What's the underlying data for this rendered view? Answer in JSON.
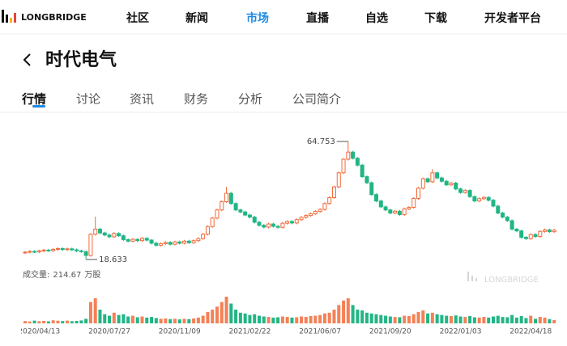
{
  "header": {
    "brand": "LONGBRIDGE",
    "nav": [
      "社区",
      "新闻",
      "市场",
      "直播",
      "自选",
      "下载",
      "开发者平台"
    ],
    "active_nav": 2
  },
  "page": {
    "title": "时代电气",
    "tabs": [
      "行情",
      "讨论",
      "资讯",
      "财务",
      "分析",
      "公司简介"
    ],
    "active_tab": 0
  },
  "chart_data": {
    "type": "candlestick",
    "categories": [
      null,
      null,
      null,
      "2020/04/13",
      null,
      null,
      null,
      null,
      null,
      null,
      null,
      null,
      null,
      null,
      null,
      null,
      null,
      null,
      "2020/07/27",
      null,
      null,
      null,
      null,
      null,
      null,
      null,
      null,
      null,
      null,
      null,
      null,
      null,
      null,
      "2020/11/09",
      null,
      null,
      null,
      null,
      null,
      null,
      null,
      null,
      null,
      null,
      null,
      null,
      null,
      null,
      "2021/02/22",
      null,
      null,
      null,
      null,
      null,
      null,
      null,
      null,
      null,
      null,
      null,
      null,
      null,
      null,
      "2021/06/07",
      null,
      null,
      null,
      null,
      null,
      null,
      null,
      null,
      null,
      null,
      null,
      null,
      null,
      null,
      "2021/09/20",
      null,
      null,
      null,
      null,
      null,
      null,
      null,
      null,
      null,
      null,
      null,
      null,
      null,
      null,
      "2022/01/03",
      null,
      null,
      null,
      null,
      null,
      null,
      null,
      null,
      null,
      null,
      null,
      null,
      null,
      null,
      "2022/04/18",
      null,
      null,
      null,
      null,
      null
    ],
    "open": [
      21.3,
      21.5,
      21.8,
      21.6,
      22.0,
      22.3,
      22.1,
      22.6,
      22.9,
      22.5,
      22.8,
      22.4,
      22.0,
      21.7,
      20.2,
      28.5,
      30.5,
      29.0,
      28.2,
      27.5,
      28.8,
      27.9,
      26.4,
      25.8,
      26.5,
      26.0,
      26.9,
      26.2,
      25.0,
      24.2,
      24.8,
      25.3,
      24.6,
      25.5,
      25.0,
      25.8,
      25.2,
      26.0,
      26.8,
      28.5,
      31.5,
      34.8,
      38.0,
      41.2,
      44.5,
      40.5,
      38.0,
      37.2,
      36.0,
      35.2,
      33.2,
      32.0,
      31.3,
      32.5,
      31.6,
      31.2,
      32.8,
      33.5,
      32.9,
      34.2,
      35.1,
      35.8,
      36.5,
      37.4,
      38.2,
      40.5,
      42.8,
      47.0,
      52.5,
      57.8,
      60.6,
      58.2,
      55.5,
      51.0,
      48.6,
      44.0,
      41.5,
      39.2,
      38.0,
      36.8,
      37.5,
      36.2,
      38.4,
      39.0,
      42.5,
      46.5,
      50.2,
      49.0,
      52.5,
      50.5,
      49.2,
      47.8,
      48.5,
      46.2,
      44.8,
      45.6,
      43.2,
      41.5,
      42.4,
      42.9,
      41.8,
      39.5,
      36.8,
      35.2,
      33.8,
      30.5,
      29.8,
      27.3,
      26.8,
      28.4,
      27.6,
      29.6,
      30.2,
      29.5
    ],
    "high": [
      22.0,
      22.3,
      22.3,
      22.5,
      22.8,
      22.8,
      23.1,
      23.4,
      23.4,
      23.3,
      23.3,
      22.9,
      22.5,
      22.2,
      29.0,
      35.4,
      31.0,
      29.5,
      28.7,
      29.3,
      29.3,
      28.4,
      26.9,
      27.0,
      27.0,
      27.4,
      27.4,
      26.7,
      25.5,
      25.3,
      25.8,
      25.8,
      26.0,
      26.0,
      26.3,
      26.3,
      26.5,
      27.3,
      29.0,
      32.0,
      35.3,
      38.5,
      41.7,
      47.0,
      45.0,
      41.0,
      38.5,
      37.7,
      36.5,
      35.7,
      33.7,
      32.5,
      33.0,
      33.0,
      32.1,
      33.3,
      34.0,
      34.0,
      34.7,
      35.6,
      36.3,
      37.0,
      37.9,
      38.7,
      41.0,
      43.3,
      47.5,
      53.0,
      58.3,
      64.753,
      61.1,
      58.7,
      56.0,
      51.5,
      49.1,
      44.5,
      42.0,
      39.7,
      38.5,
      38.0,
      38.0,
      38.9,
      39.5,
      43.0,
      47.0,
      50.7,
      50.7,
      54.0,
      53.0,
      51.0,
      49.7,
      49.0,
      49.0,
      46.7,
      46.1,
      46.1,
      43.7,
      42.9,
      43.4,
      43.4,
      42.3,
      40.0,
      37.3,
      35.7,
      34.3,
      31.0,
      30.3,
      27.8,
      28.9,
      28.9,
      30.1,
      30.7,
      30.7,
      30.6
    ],
    "low": [
      20.8,
      21.0,
      21.1,
      21.1,
      21.5,
      21.6,
      21.6,
      22.1,
      22.0,
      22.0,
      21.9,
      21.5,
      21.2,
      18.633,
      19.7,
      28.0,
      28.5,
      27.7,
      27.0,
      27.0,
      27.4,
      25.9,
      25.3,
      25.3,
      25.5,
      25.5,
      25.7,
      24.5,
      23.7,
      23.7,
      24.3,
      24.1,
      24.1,
      24.5,
      24.5,
      24.7,
      24.7,
      25.5,
      26.3,
      28.0,
      31.0,
      34.3,
      37.5,
      40.7,
      40.0,
      37.5,
      36.7,
      35.5,
      34.7,
      32.7,
      31.5,
      30.8,
      30.8,
      31.1,
      30.7,
      30.7,
      32.3,
      32.4,
      32.4,
      33.7,
      34.6,
      35.3,
      36.0,
      36.9,
      37.7,
      40.0,
      42.3,
      46.5,
      52.0,
      57.3,
      57.7,
      55.0,
      50.5,
      48.1,
      43.5,
      41.0,
      38.7,
      37.5,
      36.3,
      36.3,
      35.7,
      35.7,
      37.9,
      38.5,
      42.0,
      46.0,
      48.5,
      48.5,
      50.0,
      48.7,
      47.3,
      47.3,
      45.7,
      44.3,
      44.3,
      42.7,
      41.0,
      41.0,
      41.9,
      41.3,
      39.0,
      36.3,
      34.7,
      33.3,
      30.0,
      29.3,
      26.8,
      26.3,
      26.3,
      27.1,
      27.1,
      29.1,
      29.0,
      29.0
    ],
    "close": [
      21.5,
      21.8,
      21.6,
      22.0,
      22.3,
      22.1,
      22.6,
      22.9,
      22.5,
      22.8,
      22.4,
      22.0,
      21.7,
      20.2,
      28.5,
      30.5,
      29.0,
      28.2,
      27.5,
      28.8,
      27.9,
      26.4,
      25.8,
      26.5,
      26.0,
      26.9,
      26.2,
      25.0,
      24.2,
      24.8,
      25.3,
      24.6,
      25.5,
      25.0,
      25.8,
      25.2,
      26.0,
      26.8,
      28.5,
      31.5,
      34.8,
      38.0,
      41.2,
      44.5,
      40.5,
      38.0,
      37.2,
      36.0,
      35.2,
      33.2,
      32.0,
      31.3,
      32.5,
      31.6,
      31.2,
      32.8,
      33.5,
      32.9,
      34.2,
      35.1,
      35.8,
      36.5,
      37.4,
      38.2,
      40.5,
      42.8,
      47.0,
      52.5,
      57.8,
      60.6,
      58.2,
      55.5,
      51.0,
      48.6,
      44.0,
      41.5,
      39.2,
      38.0,
      36.8,
      37.5,
      36.2,
      38.4,
      39.0,
      42.5,
      46.5,
      50.2,
      49.0,
      52.5,
      50.5,
      49.2,
      47.8,
      48.5,
      46.2,
      44.8,
      45.6,
      43.2,
      41.5,
      42.4,
      42.9,
      41.8,
      39.5,
      36.8,
      35.2,
      33.8,
      30.5,
      29.8,
      27.3,
      26.8,
      28.4,
      27.6,
      29.6,
      30.2,
      29.5,
      30.1
    ],
    "volume": [
      150,
      120,
      180,
      140,
      160,
      130,
      200,
      170,
      150,
      180,
      140,
      160,
      190,
      300,
      1400,
      1650,
      900,
      600,
      500,
      700,
      550,
      600,
      450,
      500,
      400,
      450,
      380,
      420,
      350,
      300,
      320,
      280,
      300,
      260,
      300,
      280,
      320,
      380,
      500,
      750,
      900,
      1100,
      1400,
      1750,
      1300,
      900,
      700,
      650,
      550,
      600,
      500,
      450,
      420,
      380,
      400,
      450,
      420,
      380,
      400,
      450,
      420,
      480,
      500,
      550,
      650,
      700,
      900,
      1200,
      1500,
      1650,
      1200,
      900,
      850,
      700,
      650,
      600,
      550,
      500,
      450,
      420,
      400,
      500,
      480,
      600,
      750,
      850,
      650,
      700,
      600,
      550,
      500,
      480,
      520,
      450,
      420,
      480,
      400,
      380,
      420,
      380,
      450,
      500,
      420,
      400,
      550,
      380,
      480,
      350,
      500,
      300,
      420,
      380,
      280,
      214.67
    ],
    "volume_label": "成交量:",
    "volume_unit": "万股",
    "up_color": "#f26b3a",
    "down_color": "#22b585",
    "watermark": "LONGBRIDGE"
  }
}
